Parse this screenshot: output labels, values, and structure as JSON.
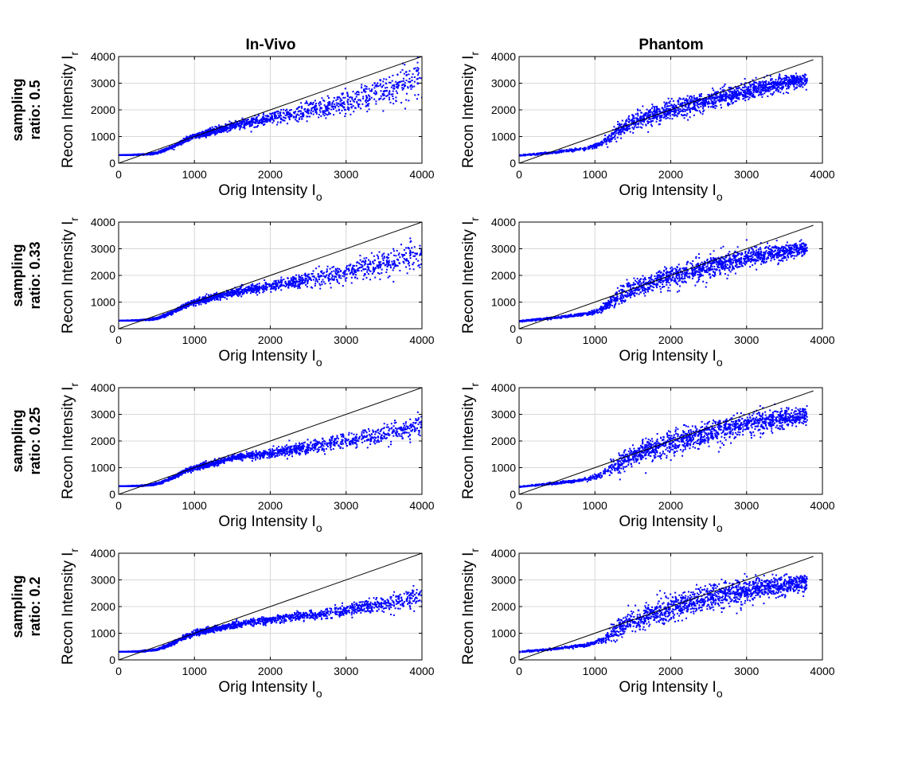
{
  "figure": {
    "columns": [
      "In-Vivo",
      "Phantom"
    ],
    "rows": [
      {
        "line1": "sampling",
        "line2": "ratio: 0.5"
      },
      {
        "line1": "sampling",
        "line2": "ratio: 0.33"
      },
      {
        "line1": "sampling",
        "line2": "ratio: 0.25"
      },
      {
        "line1": "sampling",
        "line2": "ratio: 0.2"
      }
    ],
    "xlabel": "Orig Intensity I",
    "xlabel_sub": "o",
    "ylabel": "Recon Intensity I",
    "ylabel_sub": "r",
    "xticks": [
      "0",
      "1000",
      "2000",
      "3000",
      "4000"
    ],
    "yticks": [
      "0",
      "1000",
      "2000",
      "3000",
      "4000"
    ]
  },
  "colors": {
    "points": "#0000ff",
    "identity_line": "#000000",
    "grid": "#d8d8d8"
  },
  "chart_data": [
    {
      "type": "scatter",
      "panel": "In-Vivo / sampling ratio: 0.5",
      "xlim": [
        0,
        4000
      ],
      "ylim": [
        0,
        4000
      ],
      "grid": true,
      "reference_line": "y = x",
      "trend": {
        "x": [
          0,
          300,
          500,
          700,
          900,
          1000,
          1500,
          2000,
          2500,
          3000,
          3500,
          4000
        ],
        "y": [
          300,
          320,
          380,
          600,
          900,
          1000,
          1400,
          1700,
          1950,
          2250,
          2700,
          3150
        ]
      },
      "spread": [
        0,
        10,
        20,
        30,
        40,
        50,
        80,
        110,
        160,
        220,
        300,
        380
      ]
    },
    {
      "type": "scatter",
      "panel": "Phantom / sampling ratio: 0.5",
      "xlim": [
        0,
        4000
      ],
      "ylim": [
        0,
        4000
      ],
      "grid": true,
      "reference_line": "y = x",
      "trend": {
        "x": [
          0,
          500,
          900,
          1100,
          1300,
          1500,
          2000,
          2500,
          3000,
          3500,
          3800
        ],
        "y": [
          280,
          420,
          560,
          750,
          1200,
          1550,
          2000,
          2350,
          2700,
          3000,
          3150
        ]
      },
      "spread": [
        10,
        20,
        30,
        60,
        140,
        160,
        170,
        170,
        160,
        130,
        110
      ]
    },
    {
      "type": "scatter",
      "panel": "In-Vivo / sampling ratio: 0.33",
      "xlim": [
        0,
        4000
      ],
      "ylim": [
        0,
        4000
      ],
      "grid": true,
      "reference_line": "y = x",
      "trend": {
        "x": [
          0,
          300,
          500,
          700,
          900,
          1000,
          1500,
          2000,
          2500,
          3000,
          3500,
          4000
        ],
        "y": [
          300,
          320,
          380,
          600,
          900,
          1000,
          1350,
          1600,
          1850,
          2100,
          2450,
          2850
        ]
      },
      "spread": [
        0,
        10,
        20,
        30,
        40,
        50,
        70,
        100,
        140,
        180,
        230,
        280
      ]
    },
    {
      "type": "scatter",
      "panel": "Phantom / sampling ratio: 0.33",
      "xlim": [
        0,
        4000
      ],
      "ylim": [
        0,
        4000
      ],
      "grid": true,
      "reference_line": "y = x",
      "trend": {
        "x": [
          0,
          500,
          900,
          1100,
          1300,
          1500,
          2000,
          2500,
          3000,
          3500,
          3800
        ],
        "y": [
          280,
          420,
          560,
          750,
          1200,
          1500,
          1950,
          2300,
          2650,
          2900,
          3000
        ]
      },
      "spread": [
        10,
        20,
        30,
        60,
        160,
        180,
        200,
        200,
        180,
        150,
        120
      ]
    },
    {
      "type": "scatter",
      "panel": "In-Vivo / sampling ratio: 0.25",
      "xlim": [
        0,
        4000
      ],
      "ylim": [
        0,
        4000
      ],
      "grid": true,
      "reference_line": "y = x",
      "trend": {
        "x": [
          0,
          300,
          500,
          700,
          900,
          1000,
          1500,
          2000,
          2500,
          3000,
          3500,
          4000
        ],
        "y": [
          300,
          320,
          380,
          600,
          900,
          1000,
          1350,
          1550,
          1750,
          2000,
          2250,
          2600
        ]
      },
      "spread": [
        0,
        10,
        20,
        30,
        40,
        50,
        60,
        80,
        110,
        140,
        170,
        200
      ]
    },
    {
      "type": "scatter",
      "panel": "Phantom / sampling ratio: 0.25",
      "xlim": [
        0,
        4000
      ],
      "ylim": [
        0,
        4000
      ],
      "grid": true,
      "reference_line": "y = x",
      "trend": {
        "x": [
          0,
          500,
          900,
          1100,
          1300,
          1500,
          2000,
          2500,
          3000,
          3500,
          3800
        ],
        "y": [
          280,
          420,
          560,
          750,
          1150,
          1450,
          1950,
          2300,
          2650,
          2850,
          2950
        ]
      },
      "spread": [
        10,
        20,
        30,
        60,
        170,
        200,
        220,
        220,
        200,
        170,
        140
      ]
    },
    {
      "type": "scatter",
      "panel": "In-Vivo / sampling ratio: 0.2",
      "xlim": [
        0,
        4000
      ],
      "ylim": [
        0,
        4000
      ],
      "grid": true,
      "reference_line": "y = x",
      "trend": {
        "x": [
          0,
          300,
          500,
          700,
          900,
          1000,
          1500,
          2000,
          2500,
          3000,
          3500,
          4000
        ],
        "y": [
          300,
          320,
          380,
          600,
          900,
          1000,
          1300,
          1500,
          1650,
          1850,
          2100,
          2400
        ]
      },
      "spread": [
        0,
        10,
        20,
        30,
        40,
        50,
        60,
        70,
        90,
        110,
        140,
        170
      ]
    },
    {
      "type": "scatter",
      "panel": "Phantom / sampling ratio: 0.2",
      "xlim": [
        0,
        4000
      ],
      "ylim": [
        0,
        4000
      ],
      "grid": true,
      "reference_line": "y = x",
      "trend": {
        "x": [
          0,
          500,
          900,
          1100,
          1300,
          1500,
          2000,
          2500,
          3000,
          3500,
          3800
        ],
        "y": [
          300,
          420,
          560,
          750,
          1150,
          1450,
          1900,
          2300,
          2600,
          2800,
          2900
        ]
      },
      "spread": [
        10,
        20,
        30,
        60,
        180,
        220,
        250,
        250,
        220,
        190,
        160
      ]
    }
  ]
}
